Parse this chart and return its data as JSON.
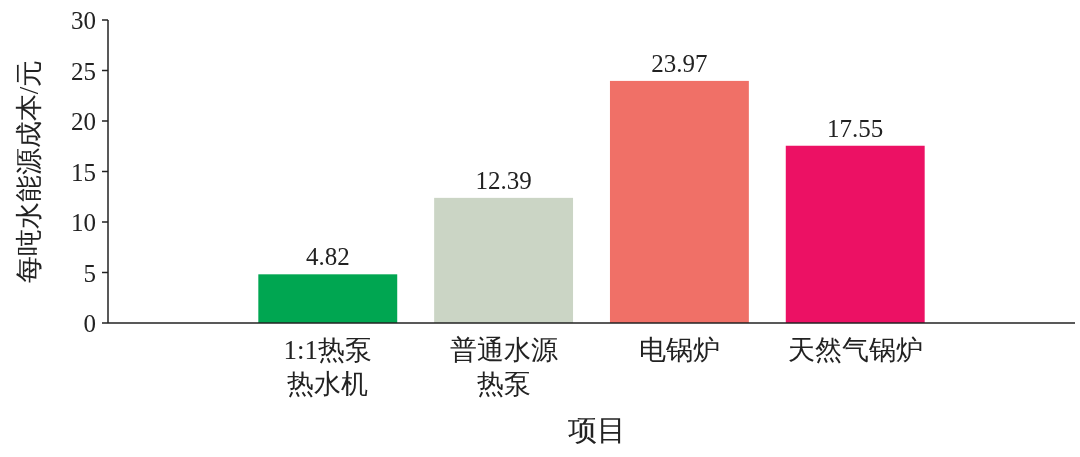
{
  "chart_data": {
    "type": "bar",
    "xlabel": "项目",
    "ylabel": "每吨水能源成本/元",
    "categories": [
      "1:1热泵热水机",
      "普通水源热泵",
      "电锅炉",
      "天然气锅炉"
    ],
    "values": [
      4.82,
      12.39,
      23.97,
      17.55
    ],
    "colors": [
      "#00a651",
      "#cbd5c5",
      "#f07067",
      "#ec1164"
    ],
    "ylim": [
      0,
      30
    ],
    "yticks": [
      0,
      5,
      10,
      15,
      20,
      25,
      30
    ],
    "data_labels": true,
    "grid": false
  }
}
